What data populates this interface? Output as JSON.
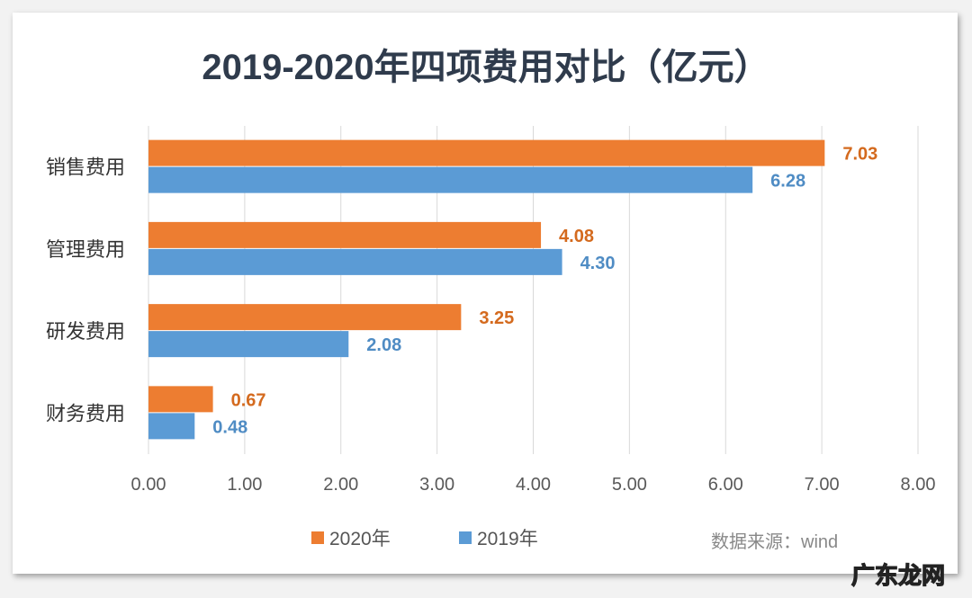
{
  "chart_data": {
    "type": "bar",
    "orientation": "horizontal",
    "title": "2019-2020年四项费用对比（亿元）",
    "categories": [
      "销售费用",
      "管理费用",
      "研发费用",
      "财务费用"
    ],
    "series": [
      {
        "name": "2020年",
        "color": "#ED7D31",
        "label_color": "#D46A1E",
        "values": [
          7.03,
          4.08,
          3.25,
          0.67
        ],
        "labels": [
          "7.03",
          "4.08",
          "3.25",
          "0.67"
        ]
      },
      {
        "name": "2019年",
        "color": "#5B9BD5",
        "label_color": "#4F8CC4",
        "values": [
          6.28,
          4.3,
          2.08,
          0.48
        ],
        "labels": [
          "6.28",
          "4.30",
          "2.08",
          "0.48"
        ]
      }
    ],
    "xlim": [
      0,
      8
    ],
    "xticks": [
      "0.00",
      "1.00",
      "2.00",
      "3.00",
      "4.00",
      "5.00",
      "6.00",
      "7.00",
      "8.00"
    ],
    "grid": "vertical",
    "legend": "bottom"
  },
  "source": "数据来源：wind",
  "watermark": "广东龙网"
}
